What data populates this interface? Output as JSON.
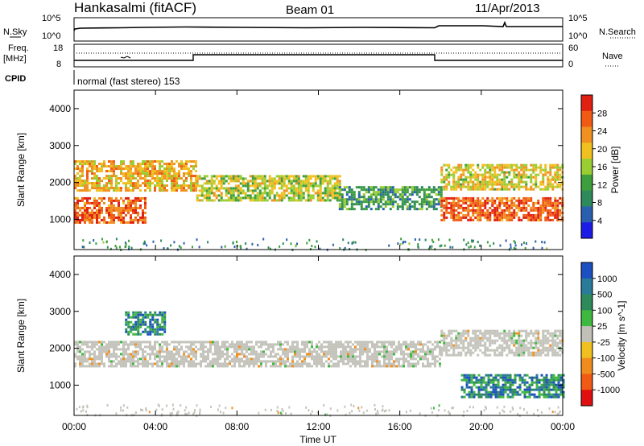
{
  "header": {
    "station": "Hankasalmi (fitACF)",
    "beam": "Beam 01",
    "date": "11/Apr/2013"
  },
  "panels": {
    "sky": {
      "label": "N.Sky",
      "tick_top": "10^5",
      "tick_bottom": "10^0",
      "right_label": "N.Search",
      "right_tick_top": "10^5",
      "right_tick_bottom": "10^0"
    },
    "freq": {
      "label_line1": "Freq.",
      "label_line2": "[MHz]",
      "tick_top": "18",
      "tick_bottom": "8",
      "right_label": "Nave",
      "right_tick_top": "60",
      "right_tick_bottom": "0"
    },
    "cpid": {
      "label": "CPID",
      "text": "normal (fast stereo) 153"
    }
  },
  "power_panel": {
    "ylabel": "Slant Range [km]",
    "yticks": [
      "1000",
      "2000",
      "3000",
      "4000"
    ],
    "cbar_label": "Power [dB]",
    "cbar_ticks": [
      "4",
      "8",
      "12",
      "16",
      "20",
      "24",
      "28"
    ],
    "cbar_colors": [
      "#1c1ce6",
      "#2a5fb0",
      "#2e8a5a",
      "#3d9e3d",
      "#9acd32",
      "#f0c020",
      "#f09020",
      "#f05a14",
      "#e02010"
    ]
  },
  "velocity_panel": {
    "ylabel": "Slant Range [km]",
    "yticks": [
      "1000",
      "2000",
      "3000",
      "4000"
    ],
    "cbar_label": "Velocity [m s^-1]",
    "cbar_ticks": [
      "1000",
      "500",
      "100",
      "25",
      "-25",
      "-100",
      "-500",
      "-1000"
    ],
    "cbar_colors": [
      "#1c4fc0",
      "#2a7a9a",
      "#2e8a5a",
      "#3fb83f",
      "#c0c0b8",
      "#f0c020",
      "#f08c1e",
      "#f05a14",
      "#e01010"
    ]
  },
  "time_axis": {
    "label": "Time UT",
    "ticks": [
      "00:00",
      "04:00",
      "08:00",
      "12:00",
      "16:00",
      "20:00",
      "00:00"
    ]
  },
  "chart_data": [
    {
      "type": "heatmap",
      "title": "Power [dB]",
      "xlabel": "Time UT",
      "ylabel": "Slant Range [km]",
      "xlim": [
        "00:00",
        "24:00"
      ],
      "ylim": [
        180,
        4500
      ],
      "colorbar": {
        "label": "Power [dB]",
        "range": [
          0,
          30
        ]
      },
      "bands": [
        {
          "from": "00:00",
          "to": "06:00",
          "range_km": [
            1800,
            2600
          ],
          "value_db": 20
        },
        {
          "from": "00:00",
          "to": "03:30",
          "range_km": [
            900,
            1600
          ],
          "value_db": 26
        },
        {
          "from": "06:00",
          "to": "13:00",
          "range_km": [
            1500,
            2200
          ],
          "value_db": 16
        },
        {
          "from": "13:00",
          "to": "18:00",
          "range_km": [
            1300,
            1900
          ],
          "value_db": 10
        },
        {
          "from": "18:00",
          "to": "24:00",
          "range_km": [
            1000,
            1600
          ],
          "value_db": 26
        },
        {
          "from": "18:00",
          "to": "24:00",
          "range_km": [
            1800,
            2500
          ],
          "value_db": 18
        }
      ]
    },
    {
      "type": "heatmap",
      "title": "Velocity [m s^-1]",
      "xlabel": "Time UT",
      "ylabel": "Slant Range [km]",
      "xlim": [
        "00:00",
        "24:00"
      ],
      "ylim": [
        180,
        4500
      ],
      "colorbar": {
        "label": "Velocity [m s^-1]",
        "ticks": [
          1000,
          500,
          100,
          25,
          -25,
          -100,
          -500,
          -1000
        ]
      },
      "bands": [
        {
          "from": "00:00",
          "to": "18:00",
          "range_km": [
            1500,
            2200
          ],
          "value_ms": 0
        },
        {
          "from": "02:30",
          "to": "04:30",
          "range_km": [
            2400,
            3000
          ],
          "value_ms": 150
        },
        {
          "from": "18:00",
          "to": "24:00",
          "range_km": [
            1800,
            2500
          ],
          "value_ms": 0
        },
        {
          "from": "19:00",
          "to": "24:00",
          "range_km": [
            700,
            1300
          ],
          "value_ms": 300
        }
      ]
    }
  ]
}
